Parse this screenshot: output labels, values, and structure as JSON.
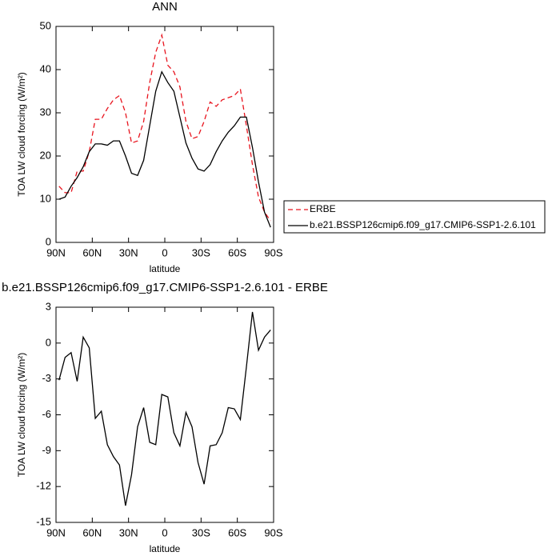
{
  "chart_data": [
    {
      "type": "line",
      "title": "ANN",
      "xlabel": "latitude",
      "ylabel": "TOA LW cloud forcing (W/m²)",
      "x": [
        87.5,
        82.5,
        77.5,
        72.5,
        67.5,
        62.5,
        57.5,
        52.5,
        47.5,
        42.5,
        37.5,
        32.5,
        27.5,
        22.5,
        17.5,
        12.5,
        7.5,
        2.5,
        -2.5,
        -7.5,
        -12.5,
        -17.5,
        -22.5,
        -27.5,
        -32.5,
        -37.5,
        -42.5,
        -47.5,
        -52.5,
        -57.5,
        -62.5,
        -67.5,
        -72.5,
        -77.5,
        -82.5,
        -87.5
      ],
      "series": [
        {
          "name": "ERBE",
          "color": "#e8141e",
          "linestyle": "dashed",
          "values": [
            13,
            11.5,
            11.5,
            16.5,
            16.5,
            21,
            28.5,
            28.5,
            31,
            33,
            34,
            30,
            23,
            23.5,
            28,
            37,
            44,
            48,
            41,
            39.5,
            36,
            28,
            24,
            24.5,
            28,
            32.5,
            31.5,
            33,
            33.5,
            34,
            35.5,
            27,
            18,
            10.5,
            7,
            5
          ]
        },
        {
          "name": "b.e21.BSSP126cmip6.f09_g17.CMIP6-SSP1-2.6.101",
          "color": "#000000",
          "linestyle": "solid",
          "values": [
            10,
            10.5,
            13,
            15,
            17.5,
            21,
            22.8,
            22.8,
            22.5,
            23.5,
            23.5,
            20,
            16,
            15.5,
            19,
            27,
            35,
            39.5,
            37,
            35,
            29,
            23,
            19.5,
            17,
            16.5,
            18,
            21,
            23.5,
            25.5,
            27,
            29,
            29,
            22,
            14,
            7,
            3.5
          ]
        }
      ],
      "xlim": [
        90,
        -90
      ],
      "xticks": [
        {
          "value": 90,
          "label": "90N"
        },
        {
          "value": 60,
          "label": "60N"
        },
        {
          "value": 30,
          "label": "30N"
        },
        0,
        {
          "value": -30,
          "label": "30S"
        },
        {
          "value": -60,
          "label": "60S"
        },
        {
          "value": -90,
          "label": "90S"
        }
      ],
      "ylim": [
        0,
        50
      ],
      "yticks": [
        0,
        10,
        20,
        30,
        40,
        50
      ],
      "legend": "right"
    },
    {
      "type": "line",
      "title": "b.e21.BSSP126cmip6.f09_g17.CMIP6-SSP1-2.6.101 - ERBE",
      "xlabel": "latitude",
      "ylabel": "TOA LW cloud forcing (W/m²)",
      "x": [
        87.5,
        82.5,
        77.5,
        72.5,
        67.5,
        62.5,
        57.5,
        52.5,
        47.5,
        42.5,
        37.5,
        32.5,
        27.5,
        22.5,
        17.5,
        12.5,
        7.5,
        2.5,
        -2.5,
        -7.5,
        -12.5,
        -17.5,
        -22.5,
        -27.5,
        -32.5,
        -37.5,
        -42.5,
        -47.5,
        -52.5,
        -57.5,
        -62.5,
        -67.5,
        -72.5,
        -77.5,
        -82.5,
        -87.5
      ],
      "series": [
        {
          "color": "#000000",
          "linestyle": "solid",
          "values": [
            -3.1,
            -1.2,
            -0.8,
            -3.2,
            0.5,
            -0.4,
            -6.3,
            -5.7,
            -8.5,
            -9.5,
            -10.2,
            -13.6,
            -11,
            -7,
            -5.4,
            -8.3,
            -8.5,
            -4.3,
            -4.5,
            -7.5,
            -8.6,
            -5.8,
            -7,
            -10,
            -11.8,
            -8.6,
            -8.5,
            -7.5,
            -5.4,
            -5.5,
            -6.4,
            -2,
            2.6,
            -0.6,
            0.5,
            1.1
          ]
        }
      ],
      "xlim": [
        90,
        -90
      ],
      "xticks": [
        {
          "value": 90,
          "label": "90N"
        },
        {
          "value": 60,
          "label": "60N"
        },
        {
          "value": 30,
          "label": "30N"
        },
        0,
        {
          "value": -30,
          "label": "30S"
        },
        {
          "value": -60,
          "label": "60S"
        },
        {
          "value": -90,
          "label": "90S"
        }
      ],
      "ylim": [
        -15,
        3
      ],
      "yticks": [
        -15,
        -12,
        -9,
        -6,
        -3,
        0,
        3
      ]
    }
  ]
}
